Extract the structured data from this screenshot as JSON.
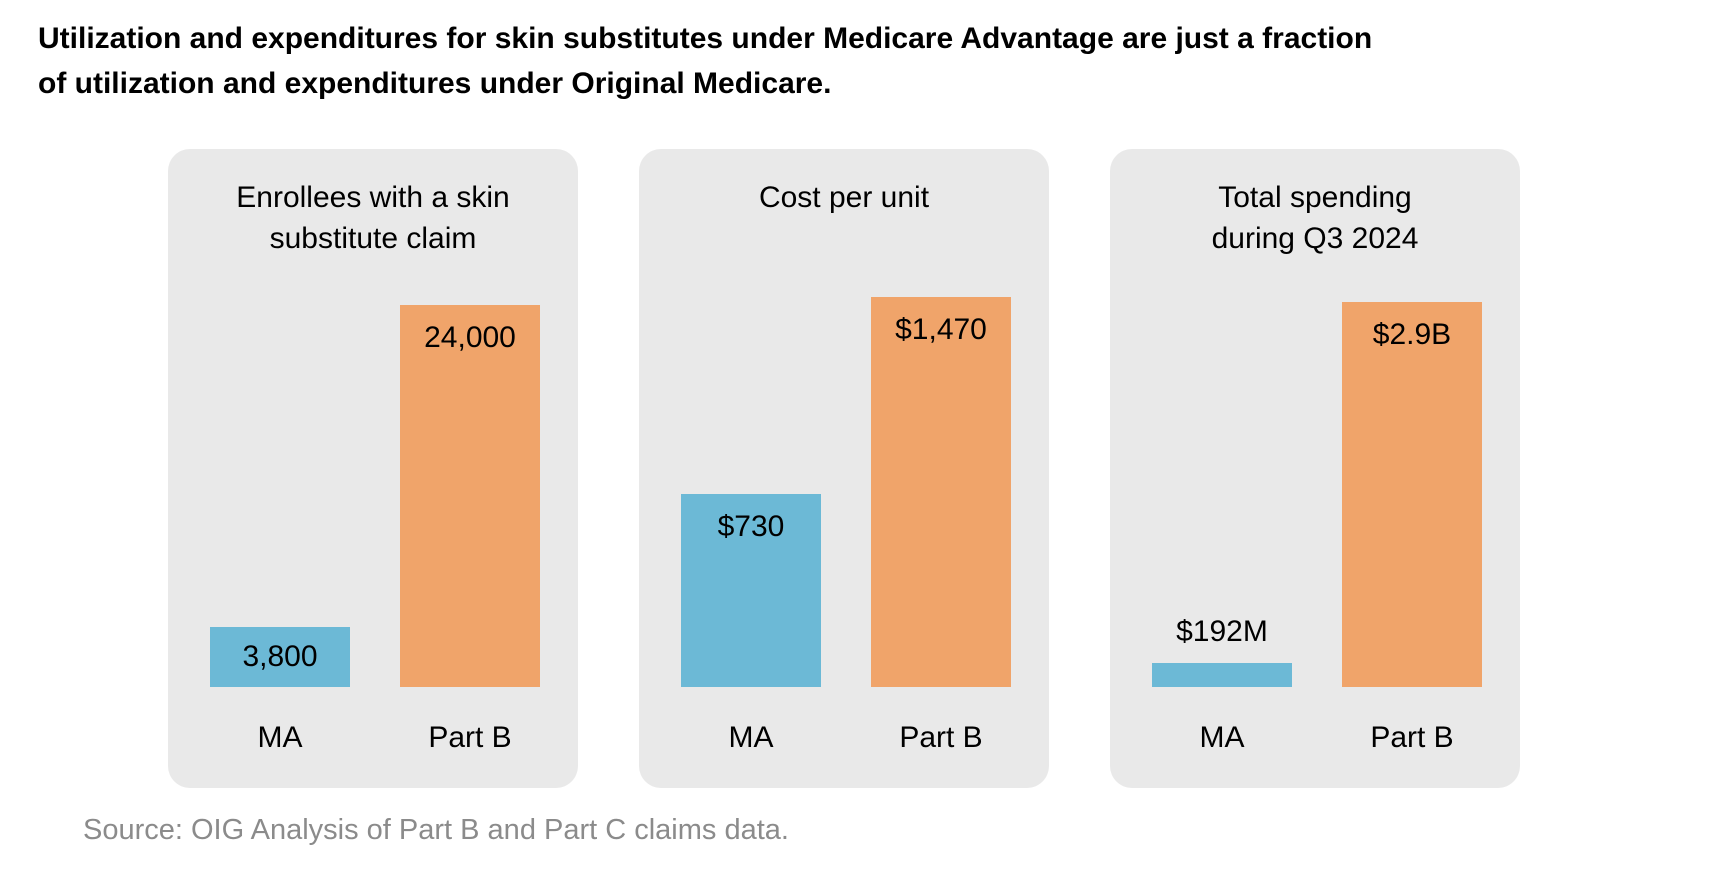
{
  "title": {
    "line1": "Utilization and expenditures for skin substitutes under Medicare Advantage are just a fraction",
    "line2": "of utilization and expenditures under Original Medicare."
  },
  "source_note": "Source: OIG Analysis of Part B and Part C claims data.",
  "colors": {
    "ma_bar": "#6CB9D6",
    "part_b_bar": "#F0A46A",
    "panel_background": "#E9E9E9",
    "title_text": "#000000",
    "source_text": "#8B8B8B"
  },
  "chart_data": [
    {
      "type": "bar",
      "title": "Enrollees with a skin substitute claim",
      "title_lines": [
        "Enrollees with a skin",
        "substitute claim"
      ],
      "categories": [
        "MA",
        "Part B"
      ],
      "values": [
        3800,
        24000
      ],
      "value_labels": [
        "3,800",
        "24,000"
      ],
      "series_colors": [
        "#6CB9D6",
        "#F0A46A"
      ],
      "unit": "enrollees",
      "grid": false,
      "legend": "none",
      "value_label_position": [
        "inside-center",
        "inside-top"
      ]
    },
    {
      "type": "bar",
      "title": "Cost per unit",
      "title_lines": [
        "Cost per unit"
      ],
      "categories": [
        "MA",
        "Part B"
      ],
      "values": [
        730,
        1470
      ],
      "value_labels": [
        "$730",
        "$1,470"
      ],
      "series_colors": [
        "#6CB9D6",
        "#F0A46A"
      ],
      "unit": "USD",
      "grid": false,
      "legend": "none",
      "value_label_position": [
        "inside-top",
        "inside-top"
      ]
    },
    {
      "type": "bar",
      "title": "Total spending during Q3 2024",
      "title_lines": [
        "Total spending",
        "during Q3 2024"
      ],
      "categories": [
        "MA",
        "Part B"
      ],
      "values": [
        192000000,
        2900000000
      ],
      "value_labels": [
        "$192M",
        "$2.9B"
      ],
      "series_colors": [
        "#6CB9D6",
        "#F0A46A"
      ],
      "unit": "USD",
      "grid": false,
      "legend": "none",
      "value_label_position": [
        "above",
        "inside-top"
      ]
    }
  ]
}
